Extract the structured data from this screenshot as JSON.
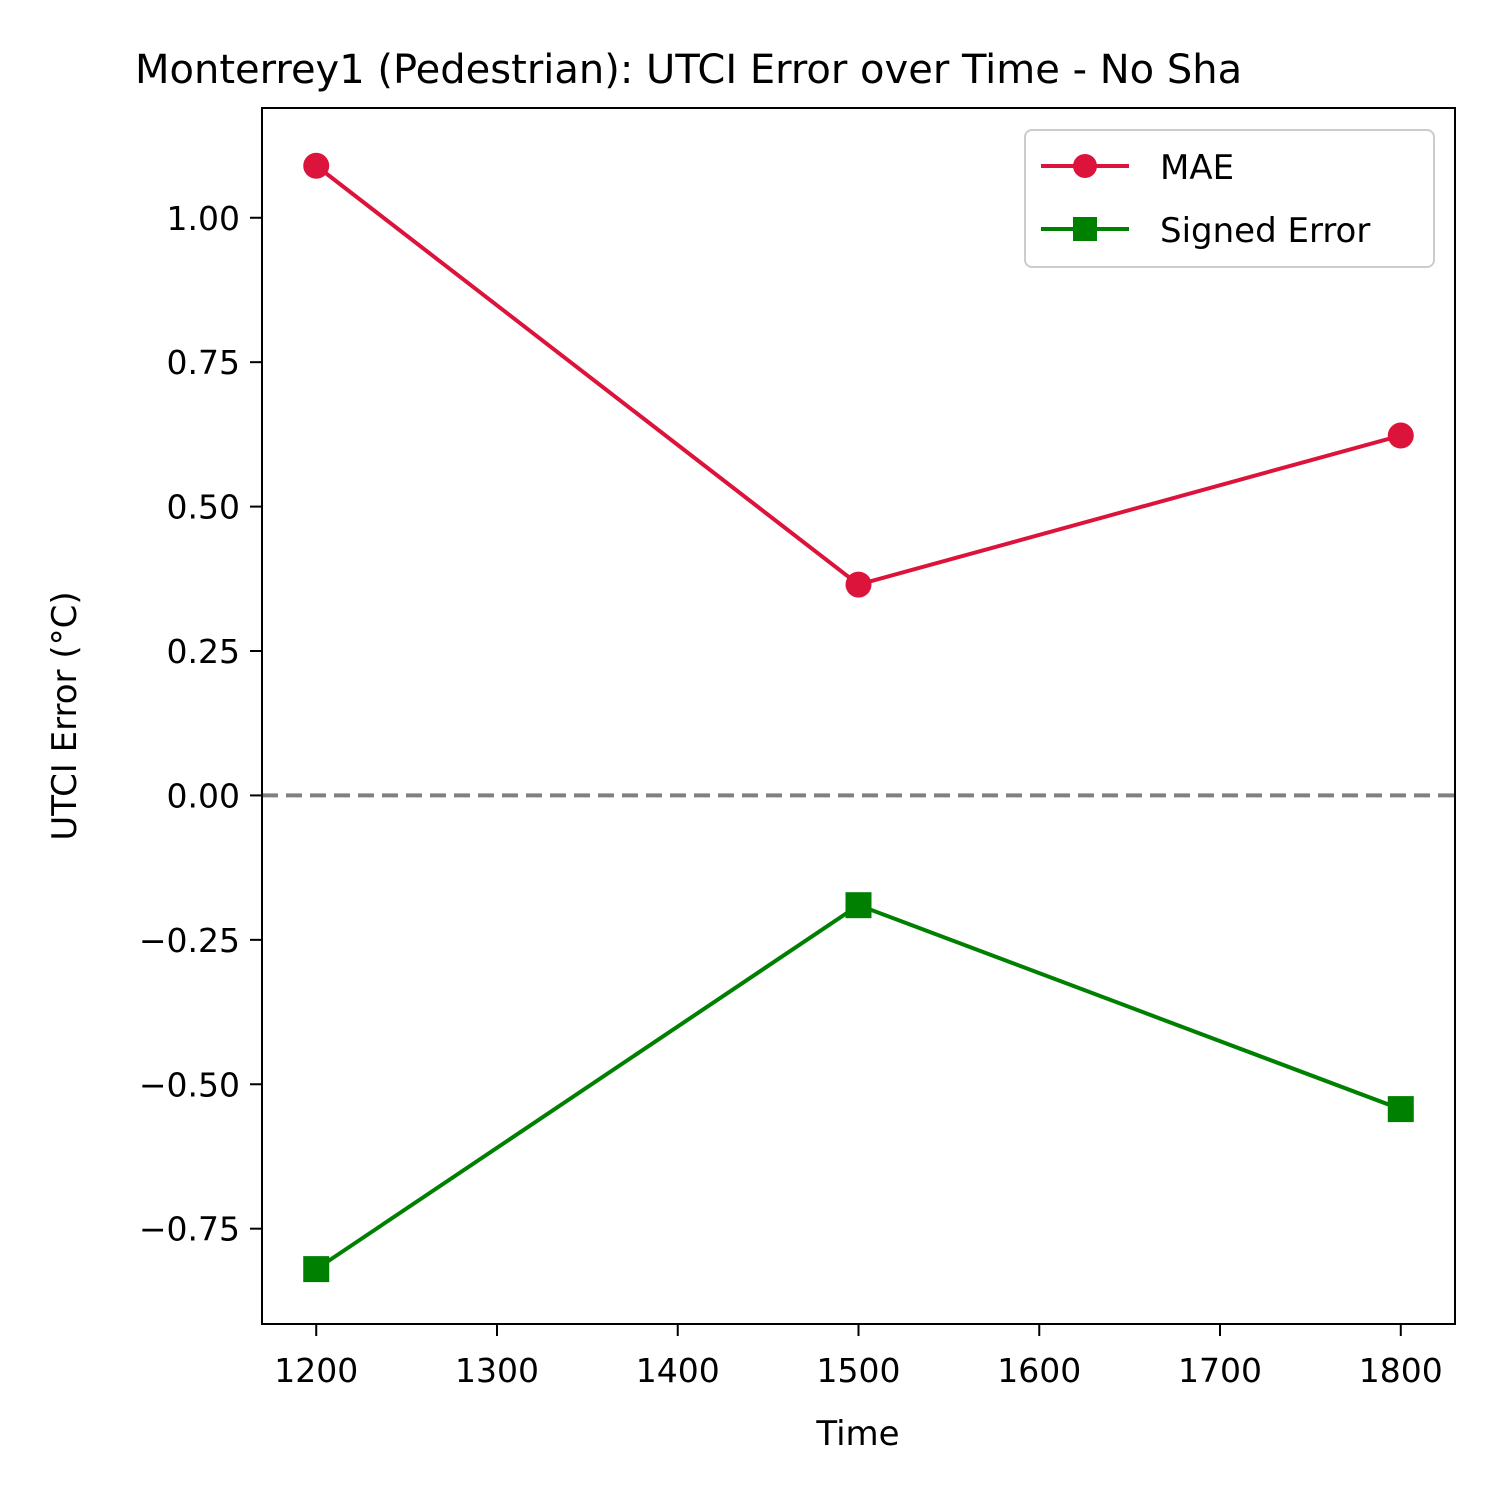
{
  "chart_data": {
    "type": "line",
    "title": "Monterrey1 (Pedestrian): UTCI Error over Time - No Sha",
    "xlabel": "Time",
    "ylabel": "UTCI Error (°C)",
    "xlim": [
      1170,
      1830
    ],
    "ylim": [
      -0.915,
      1.19
    ],
    "x_ticks": [
      1200,
      1300,
      1400,
      1500,
      1600,
      1700,
      1800
    ],
    "y_ticks": [
      1.0,
      0.75,
      0.5,
      0.25,
      0.0,
      -0.25,
      -0.5,
      -0.75
    ],
    "x_tick_labels": [
      "1200",
      "1300",
      "1400",
      "1500",
      "1600",
      "1700",
      "1800"
    ],
    "y_tick_labels": [
      "1.00",
      "0.75",
      "0.50",
      "0.25",
      "0.00",
      "−0.25",
      "−0.50",
      "−0.75"
    ],
    "x": [
      1200,
      1500,
      1800
    ],
    "series": [
      {
        "name": "MAE",
        "values": [
          1.09,
          0.365,
          0.623
        ],
        "color": "#dc143c",
        "marker": "circle"
      },
      {
        "name": "Signed Error",
        "values": [
          -0.82,
          -0.19,
          -0.543
        ],
        "color": "#008000",
        "marker": "square"
      }
    ],
    "reference_line": {
      "y": 0,
      "style": "dashed",
      "color": "#808080"
    },
    "grid": false,
    "legend": "top-right"
  }
}
